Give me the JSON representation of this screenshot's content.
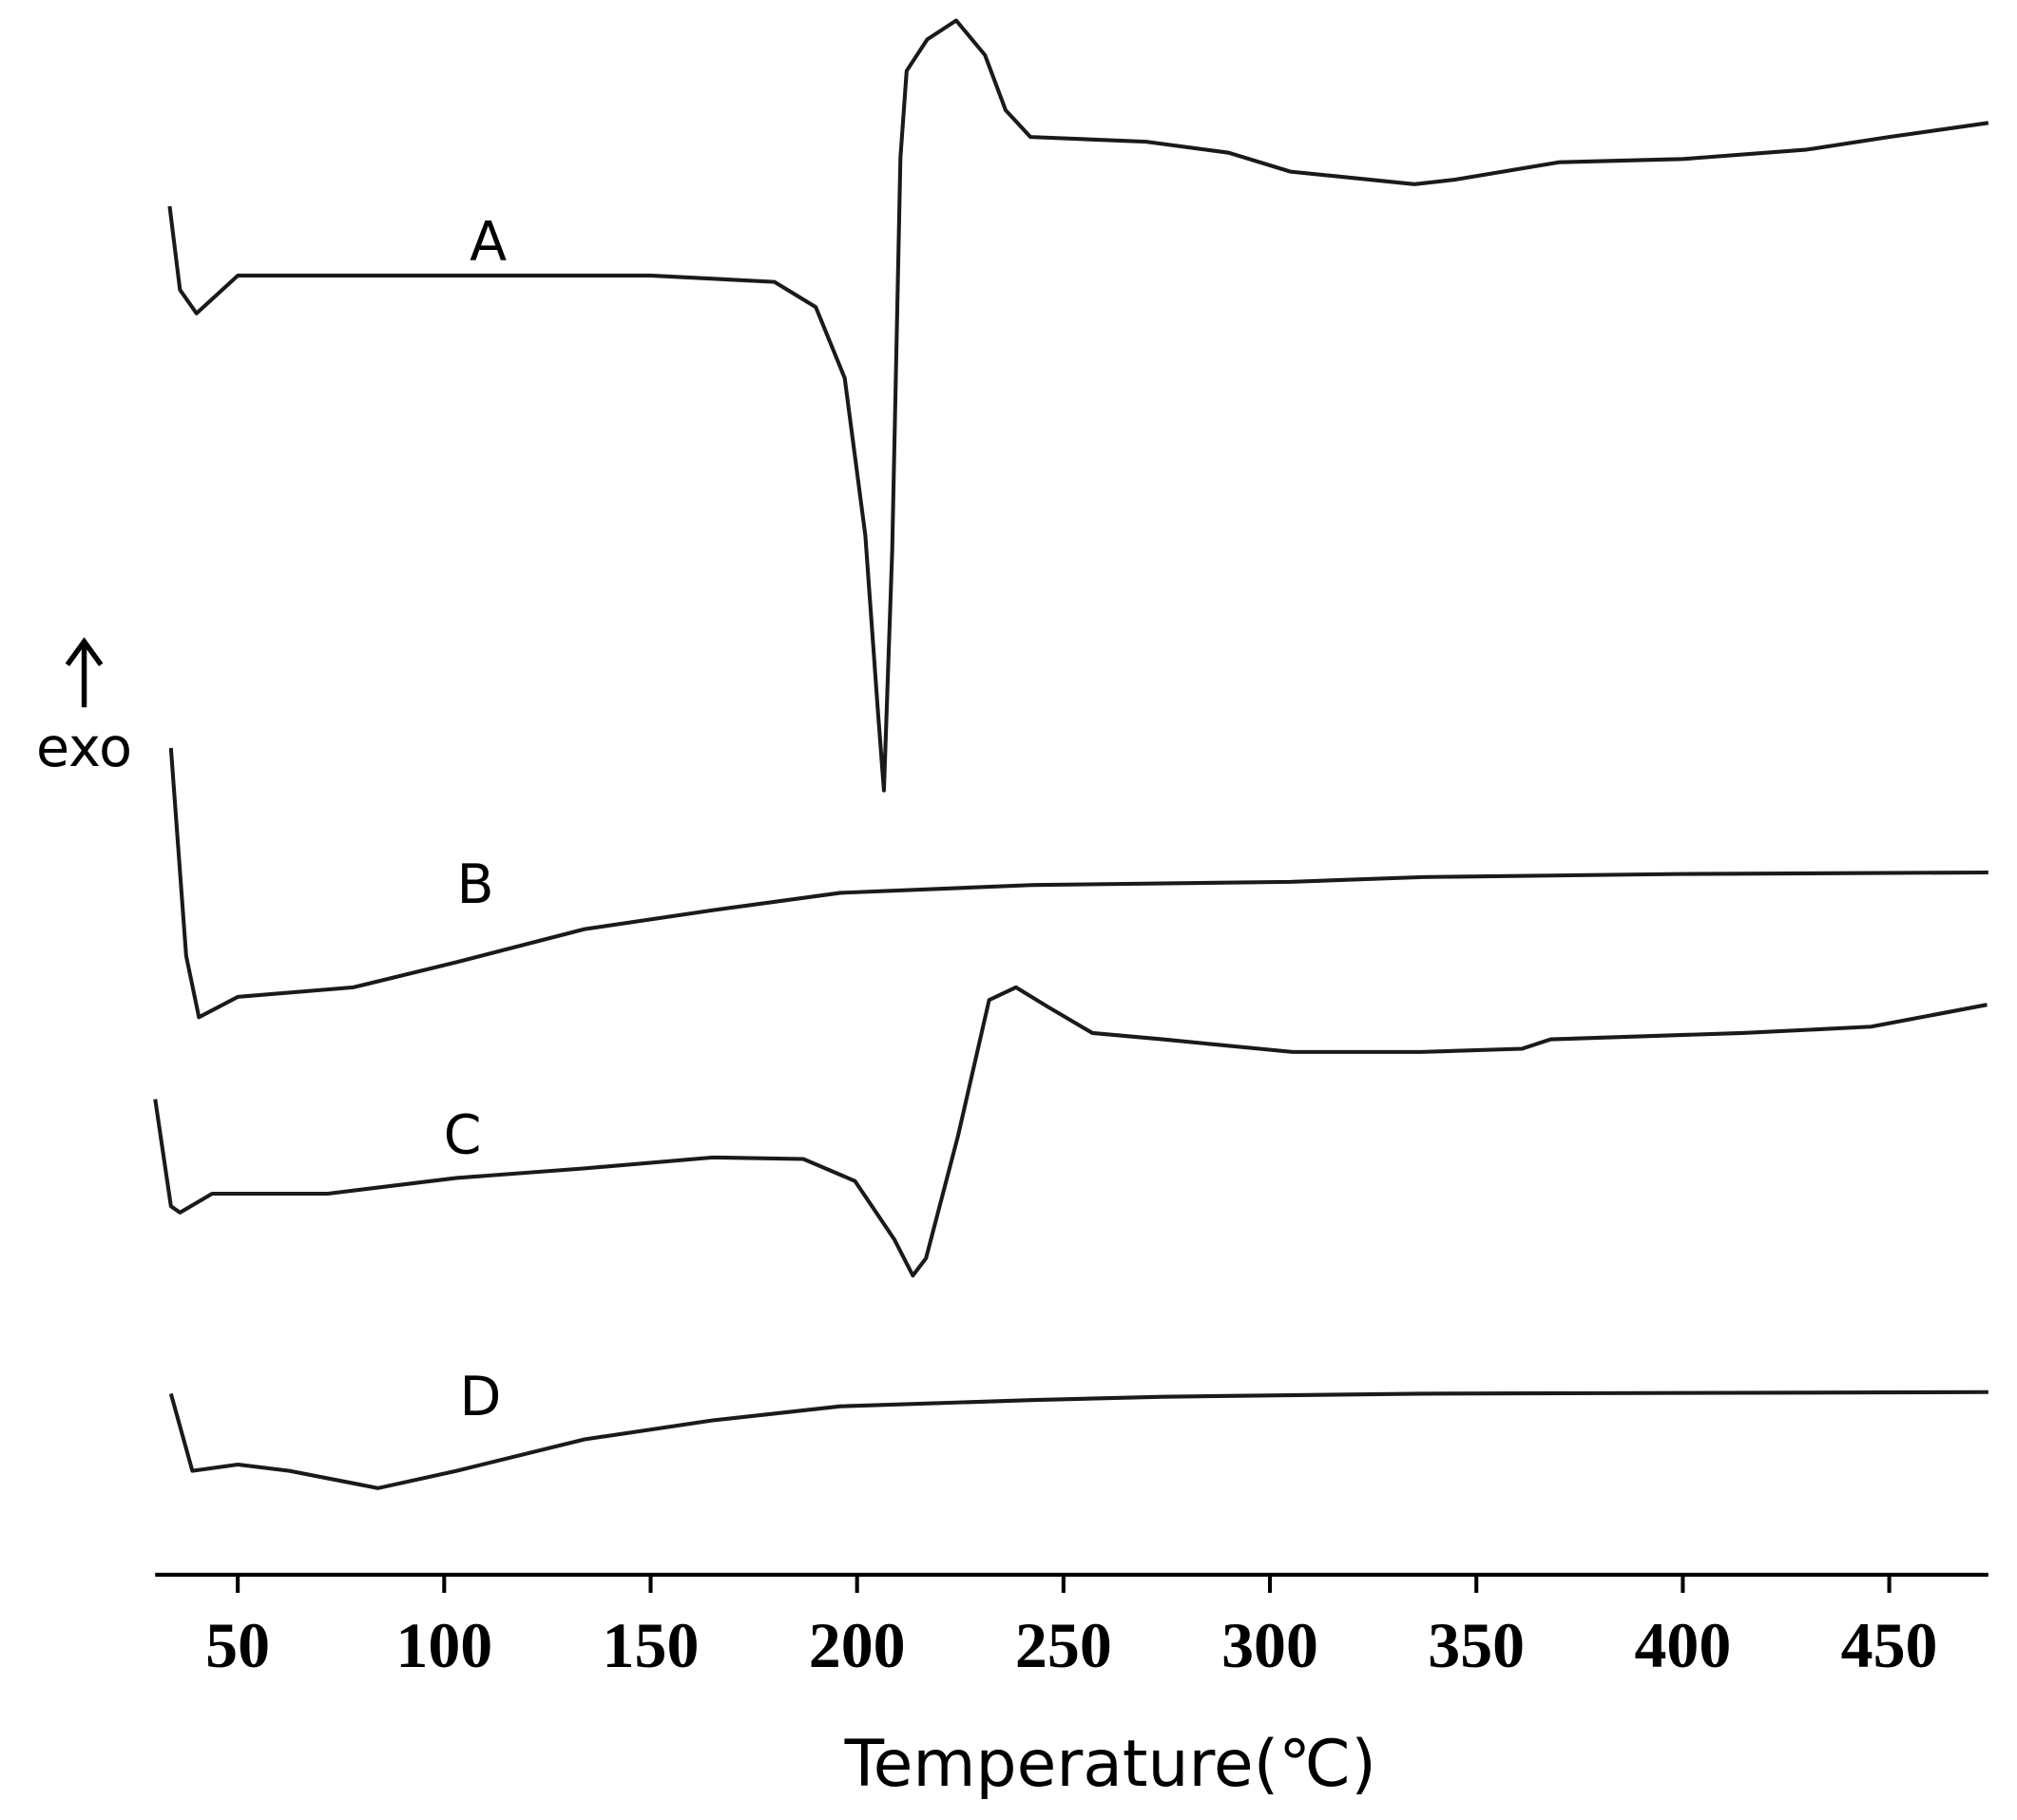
{
  "chart_data": {
    "type": "line",
    "xlabel": "Temperature(℃)",
    "ylabel": "exo",
    "xlim": [
      30,
      474
    ],
    "xticks": [
      50,
      100,
      150,
      200,
      250,
      300,
      350,
      400,
      450
    ],
    "ylim": [
      0,
      100
    ],
    "series": [
      {
        "name": "A",
        "color": "#1a1a1a",
        "x": [
          33.5,
          36,
          40,
          50,
          100,
          150,
          180,
          190,
          197,
          202,
          205,
          206.5,
          208.5,
          210.5,
          212,
          217,
          224,
          231,
          236,
          242,
          270,
          290,
          305,
          335,
          345,
          370,
          400,
          430,
          450,
          474
        ],
        "values": [
          86.9,
          81.6,
          80.1,
          82.5,
          82.5,
          82.5,
          82.1,
          80.5,
          76,
          66,
          55,
          49.8,
          65,
          90,
          95.5,
          97.5,
          98.7,
          96.5,
          93,
          91.3,
          91,
          90.3,
          89.1,
          88.3,
          88.6,
          89.7,
          89.9,
          90.5,
          91.3,
          92.2
        ]
      },
      {
        "name": "B",
        "color": "#1a1a1a",
        "x": [
          33.8,
          37.5,
          40.6,
          50,
          78,
          103,
          134,
          165,
          196,
          243,
          305,
          337,
          399,
          474
        ],
        "values": [
          52.5,
          39.3,
          35.4,
          36.7,
          37.3,
          38.9,
          41,
          42.2,
          43.3,
          43.8,
          44,
          44.3,
          44.5,
          44.6
        ]
      },
      {
        "name": "C",
        "color": "#1a1a1a",
        "x": [
          30,
          33.8,
          36,
          43.8,
          71.8,
          103,
          134,
          165,
          187,
          199.5,
          209,
          213.5,
          216.7,
          224.5,
          232,
          238.5,
          246,
          257,
          274,
          305.5,
          336.6,
          361,
          368,
          414.5,
          445.6,
          473.7
        ],
        "values": [
          30.2,
          23.4,
          23,
          24.2,
          24.2,
          25.2,
          25.8,
          26.5,
          26.4,
          25,
          21.3,
          19,
          20.1,
          27.9,
          36.5,
          37.3,
          36.1,
          34.4,
          34,
          33.2,
          33.2,
          33.4,
          34,
          34.4,
          34.8,
          36.2
        ]
      },
      {
        "name": "D",
        "color": "#1a1a1a",
        "x": [
          33.8,
          39,
          50,
          62.5,
          84,
          103,
          134,
          165,
          196,
          243,
          274,
          336.6,
          474
        ],
        "values": [
          11.5,
          6.6,
          7,
          6.6,
          5.5,
          6.6,
          8.6,
          9.8,
          10.7,
          11.1,
          11.3,
          11.5,
          11.6
        ]
      }
    ]
  }
}
